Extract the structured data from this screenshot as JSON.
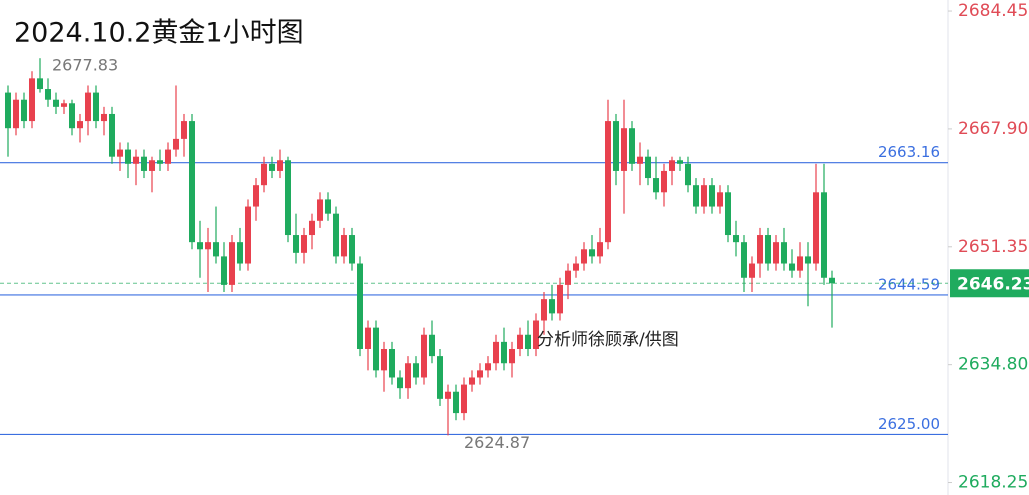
{
  "chart_data": {
    "type": "candlestick",
    "title": "2024.10.2黄金1小时图",
    "watermark": "分析师徐顾承/供图",
    "ylim": [
      2616.5,
      2686
    ],
    "yticks": [
      2684.45,
      {
        "value": 2667.9,
        "label": "2667.90"
      },
      2651.35,
      {
        "value": 2634.8,
        "label": "2634.80"
      },
      2618.25
    ],
    "levels": [
      2663.16,
      2644.59,
      {
        "value": 2625,
        "label": "2625.00"
      }
    ],
    "level_color": "#3b6fe0",
    "current_price": 2646.23,
    "high_label": 2677.83,
    "low_label": 2624.87,
    "up_color": "#e8414e",
    "down_color": "#1fab5e",
    "ohlc": [
      [
        2673,
        2674,
        2664,
        2668
      ],
      [
        2668,
        2673,
        2667,
        2672
      ],
      [
        2672,
        2673,
        2668,
        2669
      ],
      [
        2669,
        2676,
        2668,
        2675
      ],
      [
        2675,
        2677.83,
        2673,
        2673.5
      ],
      [
        2673.5,
        2675,
        2671,
        2672
      ],
      [
        2672,
        2673,
        2670,
        2671
      ],
      [
        2671,
        2672,
        2670,
        2671.5
      ],
      [
        2671.5,
        2672,
        2667,
        2668
      ],
      [
        2668,
        2670,
        2666,
        2669
      ],
      [
        2669,
        2674,
        2667,
        2673
      ],
      [
        2673,
        2674,
        2668,
        2669
      ],
      [
        2669,
        2671,
        2667,
        2670
      ],
      [
        2670,
        2671,
        2663,
        2664
      ],
      [
        2664,
        2666,
        2662,
        2665
      ],
      [
        2665,
        2666,
        2661,
        2663
      ],
      [
        2663,
        2665,
        2660,
        2664
      ],
      [
        2664,
        2665,
        2661,
        2662
      ],
      [
        2662,
        2664,
        2659,
        2663.5
      ],
      [
        2663.5,
        2665,
        2662,
        2663
      ],
      [
        2663,
        2666,
        2662,
        2665
      ],
      [
        2665,
        2674,
        2664,
        2666.5
      ],
      [
        2666.5,
        2670,
        2664,
        2669
      ],
      [
        2669,
        2670,
        2651,
        2652
      ],
      [
        2652,
        2655,
        2647,
        2651
      ],
      [
        2651,
        2654,
        2645,
        2652
      ],
      [
        2652,
        2657,
        2649,
        2650
      ],
      [
        2650,
        2652,
        2645,
        2646
      ],
      [
        2646,
        2653,
        2645,
        2652
      ],
      [
        2652,
        2654,
        2648,
        2649
      ],
      [
        2649,
        2658,
        2648,
        2657
      ],
      [
        2657,
        2661,
        2655,
        2660
      ],
      [
        2660,
        2664,
        2659,
        2663
      ],
      [
        2663,
        2664,
        2661,
        2662
      ],
      [
        2662,
        2665,
        2661,
        2663.5
      ],
      [
        2663.5,
        2664,
        2652,
        2653
      ],
      [
        2653,
        2656,
        2649,
        2650.5
      ],
      [
        2650.5,
        2654,
        2649,
        2653
      ],
      [
        2653,
        2656,
        2651,
        2655
      ],
      [
        2655,
        2659,
        2654,
        2658
      ],
      [
        2658,
        2659,
        2655,
        2656
      ],
      [
        2656,
        2657,
        2649,
        2650
      ],
      [
        2650,
        2654,
        2649,
        2653
      ],
      [
        2653,
        2654,
        2648,
        2649
      ],
      [
        2649,
        2650,
        2636,
        2637
      ],
      [
        2637,
        2641,
        2634,
        2640
      ],
      [
        2640,
        2641,
        2633,
        2634
      ],
      [
        2634,
        2638,
        2631,
        2637
      ],
      [
        2637,
        2638,
        2632,
        2633
      ],
      [
        2633,
        2634,
        2630,
        2631.5
      ],
      [
        2631.5,
        2636,
        2630,
        2635
      ],
      [
        2635,
        2636,
        2632,
        2633
      ],
      [
        2633,
        2640,
        2632,
        2639
      ],
      [
        2639,
        2641,
        2635,
        2636
      ],
      [
        2636,
        2637,
        2629,
        2630
      ],
      [
        2630,
        2632,
        2624.87,
        2631
      ],
      [
        2631,
        2632,
        2627,
        2628
      ],
      [
        2628,
        2633,
        2627,
        2632
      ],
      [
        2632,
        2634,
        2631,
        2633
      ],
      [
        2633,
        2635,
        2632,
        2634
      ],
      [
        2634,
        2636,
        2633,
        2635
      ],
      [
        2635,
        2639,
        2634,
        2638
      ],
      [
        2638,
        2640,
        2634,
        2635
      ],
      [
        2635,
        2638,
        2633,
        2637
      ],
      [
        2637,
        2640,
        2636,
        2639
      ],
      [
        2639,
        2641,
        2636,
        2637
      ],
      [
        2637,
        2642,
        2636,
        2641
      ],
      [
        2641,
        2645,
        2639,
        2644
      ],
      [
        2644,
        2646,
        2641,
        2642
      ],
      [
        2642,
        2647,
        2641,
        2646
      ],
      [
        2646,
        2649,
        2644,
        2648
      ],
      [
        2648,
        2650,
        2647,
        2649
      ],
      [
        2649,
        2652,
        2648,
        2651
      ],
      [
        2651,
        2653,
        2649,
        2650
      ],
      [
        2650,
        2654,
        2649,
        2652
      ],
      [
        2652,
        2672,
        2651,
        2669
      ],
      [
        2669,
        2670,
        2660,
        2662
      ],
      [
        2662,
        2672,
        2656,
        2668
      ],
      [
        2668,
        2669,
        2662,
        2663
      ],
      [
        2663,
        2666,
        2660,
        2664
      ],
      [
        2664,
        2665,
        2660,
        2661
      ],
      [
        2661,
        2664,
        2658,
        2659
      ],
      [
        2659,
        2663,
        2657,
        2662
      ],
      [
        2662,
        2664,
        2660,
        2663.5
      ],
      [
        2663.5,
        2664,
        2662,
        2663
      ],
      [
        2663,
        2664,
        2659,
        2660
      ],
      [
        2660,
        2661,
        2656,
        2657
      ],
      [
        2657,
        2661,
        2656,
        2660
      ],
      [
        2660,
        2661,
        2656,
        2657
      ],
      [
        2657,
        2660,
        2656,
        2659
      ],
      [
        2659,
        2660,
        2652,
        2653
      ],
      [
        2653,
        2655,
        2650,
        2652
      ],
      [
        2652,
        2653,
        2645,
        2647
      ],
      [
        2647,
        2650,
        2645,
        2649
      ],
      [
        2649,
        2654,
        2647,
        2653
      ],
      [
        2653,
        2654,
        2648,
        2649
      ],
      [
        2649,
        2653,
        2648,
        2652
      ],
      [
        2652,
        2654,
        2648,
        2649
      ],
      [
        2649,
        2651,
        2647,
        2648
      ],
      [
        2648,
        2652,
        2647,
        2650
      ],
      [
        2650,
        2652,
        2643,
        2649
      ],
      [
        2649,
        2663,
        2648,
        2659
      ],
      [
        2659,
        2663,
        2646,
        2647
      ],
      [
        2647,
        2648,
        2640,
        2646.23
      ]
    ]
  }
}
